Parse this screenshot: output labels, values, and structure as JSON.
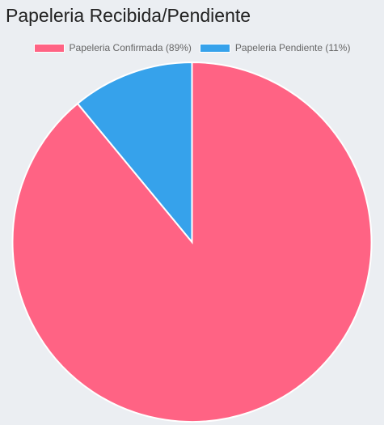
{
  "chart_data": {
    "type": "pie",
    "title": "Papeleria Recibida/Pendiente",
    "legend_position": "top",
    "categories": [
      "Papeleria Confirmada (89%)",
      "Papeleria Pendiente (11%)"
    ],
    "values": [
      89,
      11
    ],
    "colors": [
      "#ff6384",
      "#36a2eb"
    ]
  }
}
